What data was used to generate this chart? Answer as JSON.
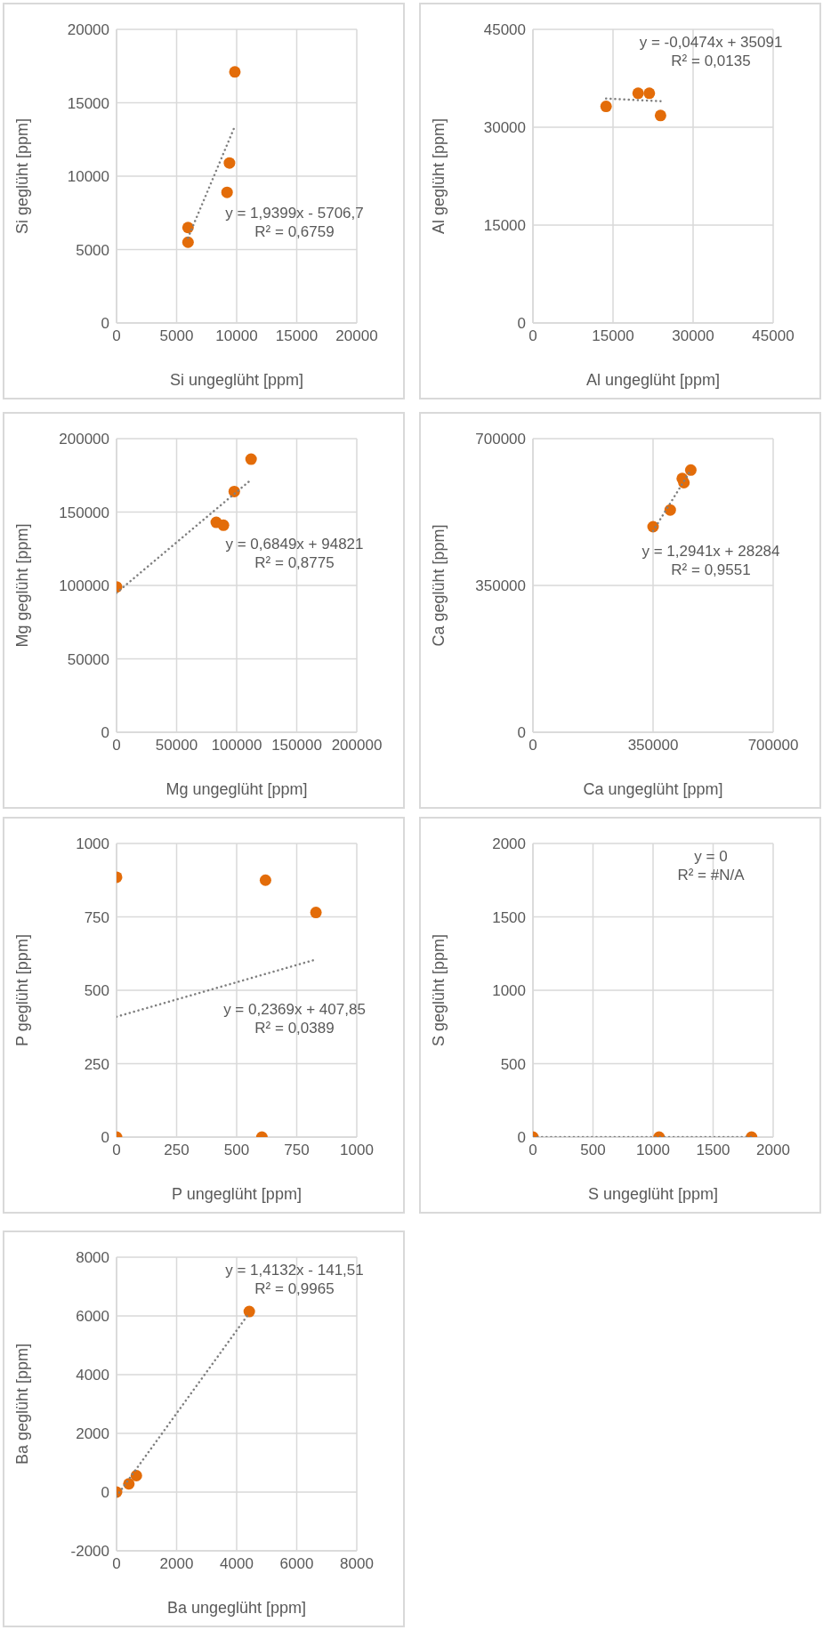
{
  "chart_data": [
    {
      "type": "scatter",
      "xlabel": "Si ungeglüht [ppm]",
      "ylabel": "Si geglüht [ppm]",
      "xlim": [
        0,
        20000
      ],
      "xticks": [
        0,
        5000,
        10000,
        15000,
        20000
      ],
      "ylim": [
        0,
        20000
      ],
      "yticks": [
        0,
        5000,
        10000,
        15000,
        20000
      ],
      "grid": true,
      "marker": "circle",
      "series": [
        {
          "type": "scatter",
          "color": "#e36c09",
          "x": [
            5950,
            5950,
            9200,
            9400,
            9850
          ],
          "values": [
            6500,
            5500,
            8900,
            10900,
            17100
          ]
        },
        {
          "type": "line",
          "color": "#7f7f7f",
          "line_style": "dotted",
          "marker": "none",
          "x": [
            5950,
            9850
          ],
          "values": [
            5800,
            13400
          ]
        }
      ],
      "annotations": [
        "y = 1,9399x - 5706,7",
        "R² = 0,6759"
      ]
    },
    {
      "type": "scatter",
      "xlabel": "Al ungeglüht [ppm]",
      "ylabel": "Al geglüht [ppm]",
      "xlim": [
        0,
        45000
      ],
      "xticks": [
        0,
        15000,
        30000,
        45000
      ],
      "ylim": [
        0,
        45000
      ],
      "yticks": [
        0,
        15000,
        30000,
        45000
      ],
      "grid": true,
      "marker": "circle",
      "series": [
        {
          "type": "scatter",
          "color": "#e36c09",
          "x": [
            13700,
            19700,
            21800,
            23900
          ],
          "values": [
            33200,
            35200,
            35200,
            31800
          ]
        },
        {
          "type": "line",
          "color": "#7f7f7f",
          "line_style": "dotted",
          "marker": "none",
          "x": [
            13700,
            23900
          ],
          "values": [
            34400,
            34000
          ]
        }
      ],
      "annotations": [
        "y = -0,0474x  + 35091",
        "R² = 0,0135"
      ]
    },
    {
      "type": "scatter",
      "xlabel": "Mg ungeglüht [ppm]",
      "ylabel": "Mg geglüht [ppm]",
      "xlim": [
        0,
        200000
      ],
      "xticks": [
        0,
        50000,
        100000,
        150000,
        200000
      ],
      "ylim": [
        0,
        200000
      ],
      "yticks": [
        0,
        50000,
        100000,
        150000,
        200000
      ],
      "grid": true,
      "marker": "circle",
      "series": [
        {
          "type": "scatter",
          "color": "#e36c09",
          "x": [
            0,
            83000,
            89000,
            98000,
            112000
          ],
          "values": [
            99000,
            143000,
            141000,
            164000,
            186000
          ]
        },
        {
          "type": "line",
          "color": "#7f7f7f",
          "line_style": "dotted",
          "marker": "none",
          "x": [
            0,
            112000
          ],
          "values": [
            95000,
            172000
          ]
        }
      ],
      "annotations": [
        "y = 0,6849x  + 94821",
        "R² = 0,8775"
      ]
    },
    {
      "type": "scatter",
      "xlabel": "Ca ungeglüht [ppm]",
      "ylabel": "Ca geglüht [ppm]",
      "xlim": [
        0,
        700000
      ],
      "xticks": [
        0,
        350000,
        700000
      ],
      "ylim": [
        0,
        700000
      ],
      "yticks": [
        0,
        350000,
        700000
      ],
      "grid": true,
      "marker": "circle",
      "series": [
        {
          "type": "scatter",
          "color": "#e36c09",
          "x": [
            350000,
            400000,
            435000,
            440000,
            460000
          ],
          "values": [
            490000,
            530000,
            605000,
            595000,
            625000
          ]
        },
        {
          "type": "line",
          "color": "#7f7f7f",
          "line_style": "dotted",
          "marker": "none",
          "x": [
            350000,
            460000
          ],
          "values": [
            480000,
            625000
          ]
        }
      ],
      "annotations": [
        "y = 1,2941x  + 28284",
        "R² = 0,9551"
      ]
    },
    {
      "type": "scatter",
      "xlabel": "P ungeglüht [ppm]",
      "ylabel": "P geglüht [ppm]",
      "xlim": [
        0,
        1000
      ],
      "xticks": [
        0,
        250,
        500,
        750,
        1000
      ],
      "ylim": [
        0,
        1000
      ],
      "yticks": [
        0,
        250,
        500,
        750,
        1000
      ],
      "grid": true,
      "marker": "circle",
      "series": [
        {
          "type": "scatter",
          "color": "#e36c09",
          "x": [
            0,
            620,
            830,
            0,
            605
          ],
          "values": [
            885,
            875,
            765,
            0,
            0
          ]
        },
        {
          "type": "line",
          "color": "#7f7f7f",
          "line_style": "dotted",
          "marker": "none",
          "x": [
            0,
            830
          ],
          "values": [
            410,
            605
          ]
        }
      ],
      "annotations": [
        "y = 0,2369x  + 407,85",
        "R² = 0,0389"
      ]
    },
    {
      "type": "scatter",
      "xlabel": "S ungeglüht [ppm]",
      "ylabel": "S geglüht [ppm]",
      "xlim": [
        0,
        2000
      ],
      "xticks": [
        0,
        500,
        1000,
        1500,
        2000
      ],
      "ylim": [
        0,
        2000
      ],
      "yticks": [
        0,
        500,
        1000,
        1500,
        2000
      ],
      "grid": true,
      "marker": "circle",
      "series": [
        {
          "type": "scatter",
          "color": "#e36c09",
          "x": [
            0,
            1050,
            1820
          ],
          "values": [
            0,
            0,
            0
          ]
        },
        {
          "type": "line",
          "color": "#7f7f7f",
          "line_style": "dotted",
          "marker": "none",
          "x": [
            0,
            1820
          ],
          "values": [
            0,
            0
          ]
        }
      ],
      "annotations": [
        "y = 0",
        "R² = #N/A"
      ]
    },
    {
      "type": "scatter",
      "xlabel": "Ba ungeglüht [ppm]",
      "ylabel": "Ba geglüht [ppm]",
      "xlim": [
        0,
        8000
      ],
      "xticks": [
        0,
        2000,
        4000,
        6000,
        8000
      ],
      "ylim": [
        -2000,
        8000
      ],
      "yticks": [
        -2000,
        0,
        2000,
        4000,
        6000,
        8000
      ],
      "grid": true,
      "marker": "circle",
      "series": [
        {
          "type": "scatter",
          "color": "#e36c09",
          "x": [
            0,
            410,
            660,
            4420
          ],
          "values": [
            0,
            280,
            560,
            6150
          ]
        },
        {
          "type": "line",
          "color": "#7f7f7f",
          "line_style": "dotted",
          "marker": "none",
          "x": [
            0,
            4420
          ],
          "values": [
            -140,
            6100
          ]
        }
      ],
      "annotations": [
        "y = 1,4132x  - 141,51",
        "R² = 0,9965"
      ]
    }
  ]
}
